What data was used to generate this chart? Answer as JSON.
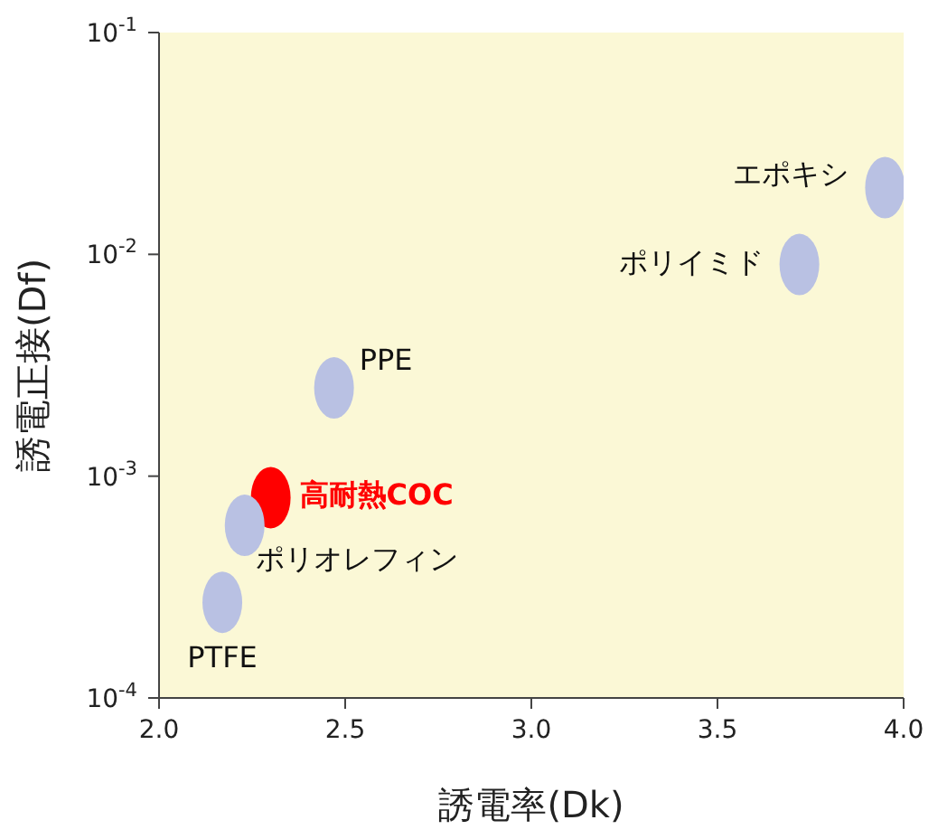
{
  "chart_data": {
    "type": "scatter",
    "xlabel": "誘電率(Dk)",
    "ylabel": "誘電正接(Df)",
    "log": "y",
    "marker": "circle",
    "xlim": [
      2.0,
      4.0
    ],
    "xticks": [
      {
        "value": 2.0,
        "label": "2.0"
      },
      {
        "value": 2.5,
        "label": "2.5"
      },
      {
        "value": 3.0,
        "label": "3.0"
      },
      {
        "value": 3.5,
        "label": "3.5"
      },
      {
        "value": 4.0,
        "label": "4.0"
      }
    ],
    "ylim": [
      0.0001,
      0.1
    ],
    "yticks": [
      {
        "value": 0.0001,
        "label": "10$^{-4}$"
      },
      {
        "value": 0.001,
        "label": "10$^{-3}$"
      },
      {
        "value": 0.01,
        "label": "10$^{-2}$"
      },
      {
        "value": 0.1,
        "label": "10$^{-1}$"
      }
    ],
    "series": [
      {
        "name": "エポキシ",
        "color": "#b9c1e3",
        "x": [
          3.95
        ],
        "values": [
          0.02
        ]
      },
      {
        "name": "ポリイミド",
        "color": "#b9c1e3",
        "x": [
          3.72
        ],
        "values": [
          0.009
        ]
      },
      {
        "name": "PPE",
        "color": "#b9c1e3",
        "x": [
          2.47
        ],
        "values": [
          0.0025
        ]
      },
      {
        "name": "高耐熱COC",
        "color": "#ff0000",
        "x": [
          2.3
        ],
        "values": [
          0.0008
        ]
      },
      {
        "name": "ポリオレフィン",
        "color": "#b9c1e3",
        "x": [
          2.23
        ],
        "values": [
          0.0006
        ]
      },
      {
        "name": "PTFE",
        "color": "#b9c1e3",
        "x": [
          2.17
        ],
        "values": [
          0.00027
        ]
      }
    ]
  }
}
